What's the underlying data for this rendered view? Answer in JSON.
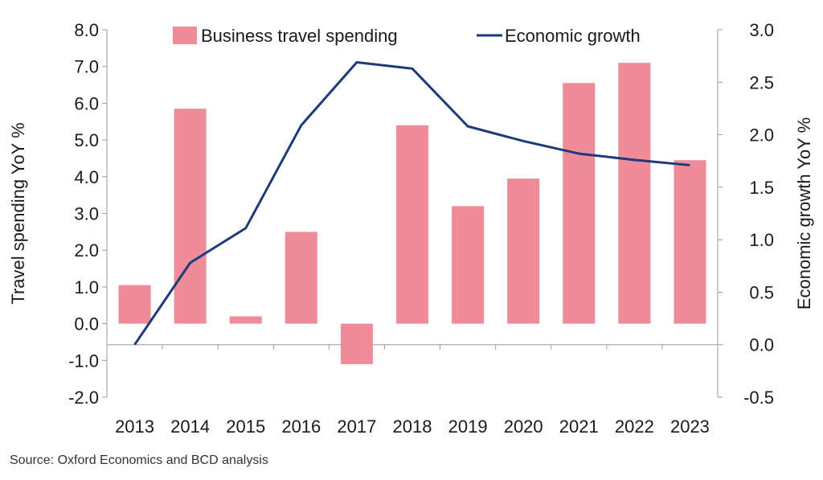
{
  "chart_data": {
    "type": "bar+line",
    "categories": [
      "2013",
      "2014",
      "2015",
      "2016",
      "2017",
      "2018",
      "2019",
      "2020",
      "2021",
      "2022",
      "2023"
    ],
    "series": [
      {
        "name": "Business travel spending",
        "kind": "bar",
        "axis": "left",
        "color": "#f08b99",
        "values": [
          1.05,
          5.85,
          0.2,
          2.5,
          -1.1,
          5.4,
          3.2,
          3.95,
          6.55,
          7.1,
          4.45
        ]
      },
      {
        "name": "Economic growth",
        "kind": "line",
        "axis": "right",
        "color": "#1f3a7a",
        "values": [
          0.0,
          0.78,
          1.11,
          2.09,
          2.69,
          2.63,
          2.08,
          1.94,
          1.82,
          1.76,
          1.71
        ]
      }
    ],
    "y_left": {
      "label": "Travel spending YoY %",
      "min": -2.0,
      "max": 8.0,
      "ticks": [
        "8.0",
        "7.0",
        "6.0",
        "5.0",
        "4.0",
        "3.0",
        "2.0",
        "1.0",
        "0.0",
        "-1.0",
        "-2.0"
      ]
    },
    "y_right": {
      "label": "Economic growth YoY %",
      "min": -0.5,
      "max": 3.0,
      "ticks": [
        "3.0",
        "2.5",
        "2.0",
        "1.5",
        "1.0",
        "0.5",
        "0.0",
        "-0.5"
      ]
    },
    "legend_position": "top",
    "grid": false
  },
  "source_text": "Source: Oxford Economics and BCD analysis"
}
